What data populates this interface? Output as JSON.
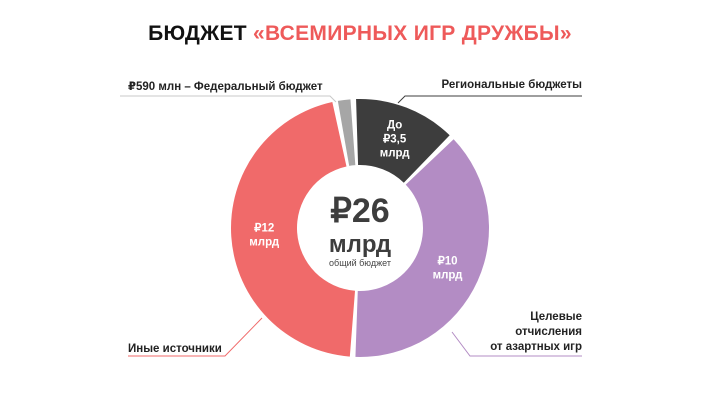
{
  "title": {
    "prefix": "БЮДЖЕТ ",
    "accent": "«ВСЕМИРНЫХ ИГР ДРУЖБЫ»"
  },
  "chart_data": {
    "type": "pie",
    "variant": "donut",
    "center": {
      "value": "₽26",
      "unit": "млрд",
      "caption": "общий бюджет"
    },
    "slices": [
      {
        "label": "Региональные бюджеты",
        "value": 3.5,
        "value_text": [
          "До",
          "₽3,5",
          "млрд"
        ],
        "color": "#3d3d3d",
        "text_color": "#ffffff"
      },
      {
        "label": "Целевые отчисления от азартных игр",
        "value": 10,
        "value_text": [
          "₽10",
          "млрд"
        ],
        "color": "#b38cc4",
        "text_color": "#ffffff"
      },
      {
        "label": "Иные источники",
        "value": 12,
        "value_text": [
          "₽12",
          "млрд"
        ],
        "color": "#f06a6a",
        "text_color": "#ffffff"
      },
      {
        "label": "₽590 млн – Федеральный бюджет",
        "value": 0.59,
        "value_text": [],
        "color": "#a6a6a6",
        "text_color": "#ffffff"
      }
    ],
    "legend_labels": {
      "federal": "₽590 млн – Федеральный бюджет",
      "regional": "Региональные бюджеты",
      "gambling": [
        "Целевые",
        "отчисления",
        "от азартных игр"
      ],
      "other": "Иные источники"
    }
  }
}
